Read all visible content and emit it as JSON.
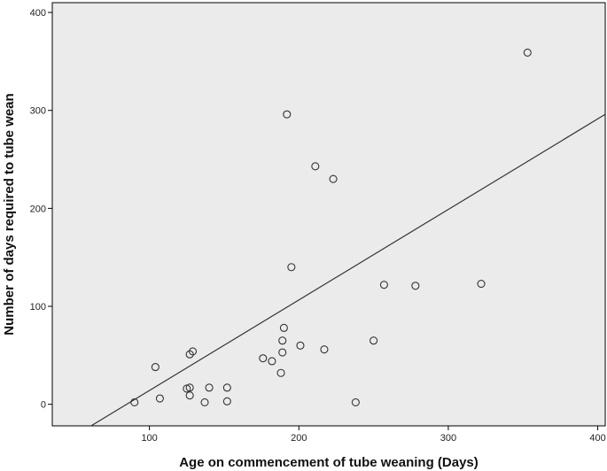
{
  "chart_data": {
    "type": "scatter",
    "title": "",
    "xlabel": "Age on commencement of tube weaning (Days)",
    "ylabel": "Number of days required to tube wean",
    "xlim": [
      35,
      405
    ],
    "ylim": [
      -22,
      410
    ],
    "x_ticks": [
      100,
      200,
      300,
      400
    ],
    "y_ticks": [
      0,
      100,
      200,
      300,
      400
    ],
    "grid": false,
    "plot_background": "#ebebeb",
    "point_color": "#333333",
    "line_color": "#333333",
    "points": [
      {
        "x": 90,
        "y": 2
      },
      {
        "x": 104,
        "y": 38
      },
      {
        "x": 107,
        "y": 6
      },
      {
        "x": 125,
        "y": 16
      },
      {
        "x": 127,
        "y": 17
      },
      {
        "x": 127,
        "y": 9
      },
      {
        "x": 127,
        "y": 51
      },
      {
        "x": 129,
        "y": 54
      },
      {
        "x": 137,
        "y": 2
      },
      {
        "x": 140,
        "y": 17
      },
      {
        "x": 152,
        "y": 17
      },
      {
        "x": 152,
        "y": 3
      },
      {
        "x": 176,
        "y": 47
      },
      {
        "x": 182,
        "y": 44
      },
      {
        "x": 188,
        "y": 32
      },
      {
        "x": 189,
        "y": 53
      },
      {
        "x": 189,
        "y": 65
      },
      {
        "x": 190,
        "y": 78
      },
      {
        "x": 192,
        "y": 296
      },
      {
        "x": 195,
        "y": 140
      },
      {
        "x": 201,
        "y": 60
      },
      {
        "x": 211,
        "y": 243
      },
      {
        "x": 217,
        "y": 56
      },
      {
        "x": 223,
        "y": 230
      },
      {
        "x": 238,
        "y": 2
      },
      {
        "x": 250,
        "y": 65
      },
      {
        "x": 257,
        "y": 122
      },
      {
        "x": 278,
        "y": 121
      },
      {
        "x": 322,
        "y": 123
      },
      {
        "x": 353,
        "y": 359
      }
    ],
    "fit_line": {
      "x": [
        35,
        405
      ],
      "y": [
        -46,
        296
      ]
    }
  }
}
